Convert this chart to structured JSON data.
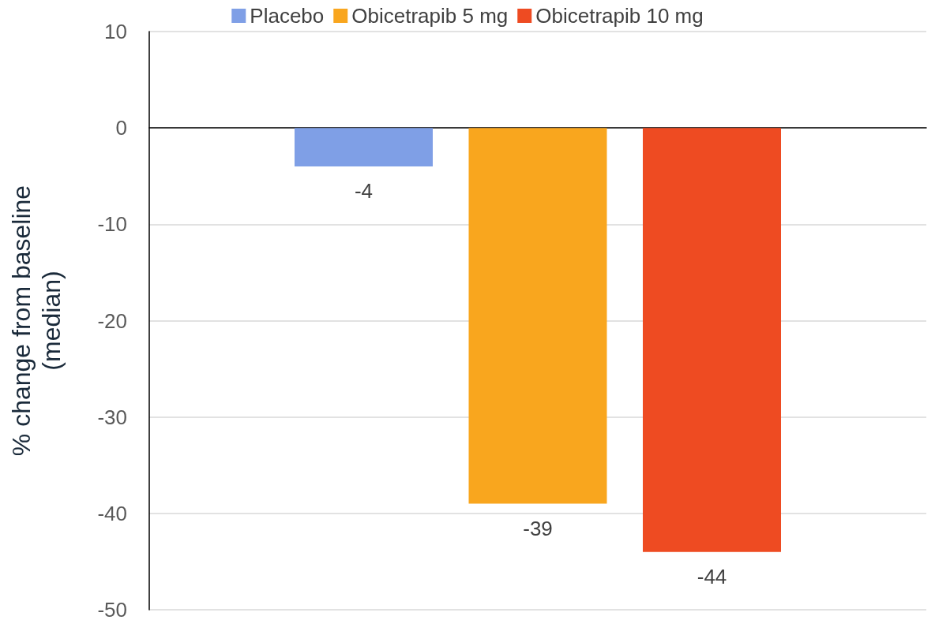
{
  "chart_data": {
    "type": "bar",
    "ylabel": "% change from baseline\n(median)",
    "categories": [
      null
    ],
    "series": [
      {
        "name": "Placebo",
        "color": "#7f9fe6",
        "values": [
          -4
        ]
      },
      {
        "name": "Obicetrapib 5 mg",
        "color": "#f9a61e",
        "values": [
          -39
        ]
      },
      {
        "name": "Obicetrapib 10 mg",
        "color": "#ee4b22",
        "values": [
          -44
        ]
      }
    ],
    "ylim": [
      -50,
      10
    ],
    "yticks": [
      -50,
      -40,
      -30,
      -20,
      -10,
      0,
      10
    ],
    "grid": "y",
    "legend": "top",
    "data_labels": true
  }
}
